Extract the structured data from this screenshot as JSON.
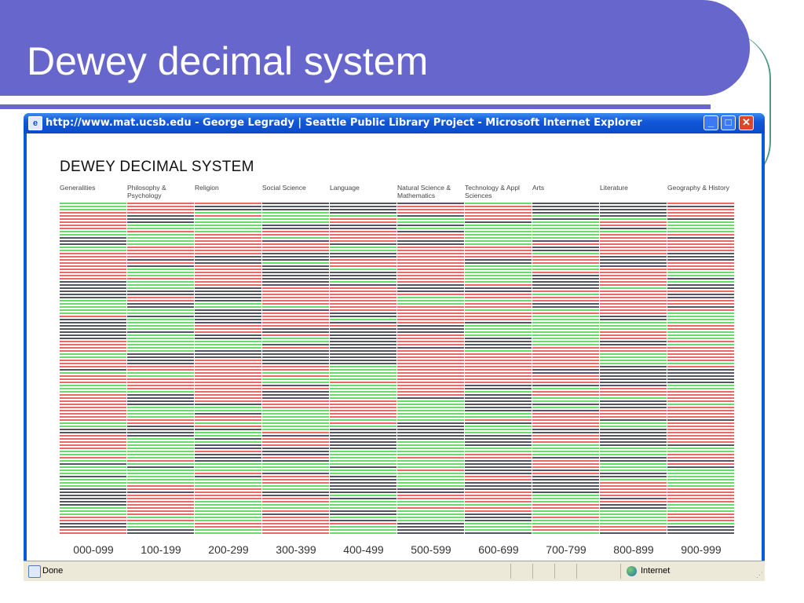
{
  "slide": {
    "title": "Dewey decimal system"
  },
  "window": {
    "title": "http://www.mat.ucsb.edu - George Legrady | Seattle Public Library Project - Microsoft Internet Explorer",
    "minimize_glyph": "_",
    "maximize_glyph": "□",
    "close_glyph": "✕"
  },
  "page": {
    "heading": "DEWEY DECIMAL SYSTEM",
    "categories": [
      {
        "label": "Generalities",
        "range": "000-099"
      },
      {
        "label": "Philosophy & Psychology",
        "range": "100-199"
      },
      {
        "label": "Religion",
        "range": "200-299"
      },
      {
        "label": "Social Science",
        "range": "300-399"
      },
      {
        "label": "Language",
        "range": "400-499"
      },
      {
        "label": "Natural Science & Mathematics",
        "range": "500-599"
      },
      {
        "label": "Technology & Appl Sciences",
        "range": "600-699"
      },
      {
        "label": "Arts",
        "range": "700-799"
      },
      {
        "label": "Literature",
        "range": "800-899"
      },
      {
        "label": "Geography & History",
        "range": "900-999"
      }
    ],
    "band_colors": [
      "#ee6666",
      "#66dd66",
      "#555560"
    ]
  },
  "statusbar": {
    "status": "Done",
    "zone": "Internet"
  }
}
